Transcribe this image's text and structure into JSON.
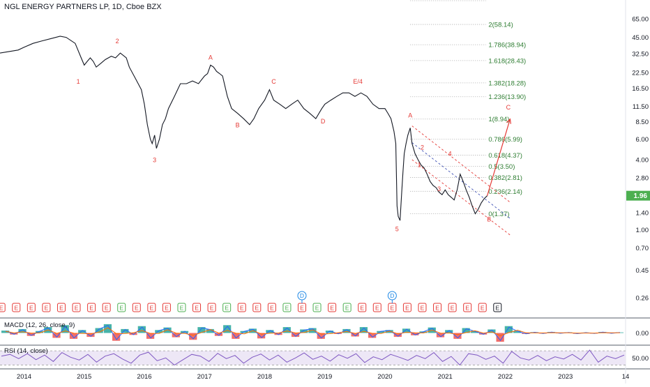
{
  "header": {
    "title": "NGL ENERGY PARTNERS LP, 1D, Cboe BZX"
  },
  "price_badge": {
    "value": "1.96",
    "color": "#4caf50"
  },
  "colors": {
    "price_line": "#131722",
    "wave_label": "#e53935",
    "fib_text": "#2e7d32",
    "fib_line": "#9e9e9e",
    "channel": "#e53935",
    "channel_mid": "#3f51b5",
    "projection": "#e53935",
    "macd_line": "#2962ff",
    "macd_signal": "#ff6d00",
    "macd_hist_pos": "#26a69a",
    "macd_hist_neg": "#ef5350",
    "rsi_line": "#7e57c2",
    "rsi_band": "#ede7f6",
    "earnings": "#e53935",
    "dividend": "#1e88e5",
    "split": "#4caf50"
  },
  "chart_data": {
    "type": "line",
    "scale": "log",
    "xlim": [
      2013.6,
      2024.0
    ],
    "ylim": [
      0.2,
      110
    ],
    "x_ticks": [
      "2014",
      "2015",
      "2016",
      "2017",
      "2018",
      "2019",
      "2020",
      "2021",
      "2022",
      "2023",
      "14"
    ],
    "x_tick_years": [
      2014,
      2015,
      2016,
      2017,
      2018,
      2019,
      2020,
      2021,
      2022,
      2023,
      2024
    ],
    "y_ticks": [
      "65.00",
      "45.00",
      "32.50",
      "22.50",
      "16.50",
      "11.50",
      "8.50",
      "6.00",
      "4.00",
      "2.80",
      "1.96",
      "1.40",
      "1.00",
      "0.70",
      "0.45",
      "0.26"
    ],
    "y_tick_values": [
      65,
      45,
      32.5,
      22.5,
      16.5,
      11.5,
      8.5,
      6,
      4,
      2.8,
      1.96,
      1.4,
      1.0,
      0.7,
      0.45,
      0.26
    ],
    "price_series": {
      "name": "",
      "x": [
        2013.6,
        2013.75,
        2013.9,
        2014.0,
        2014.15,
        2014.3,
        2014.45,
        2014.6,
        2014.7,
        2014.85,
        2014.95,
        2015.0,
        2015.05,
        2015.1,
        2015.15,
        2015.2,
        2015.28,
        2015.35,
        2015.45,
        2015.52,
        2015.6,
        2015.7,
        2015.75,
        2015.85,
        2015.95,
        2016.0,
        2016.05,
        2016.1,
        2016.13,
        2016.17,
        2016.2,
        2016.25,
        2016.3,
        2016.35,
        2016.4,
        2016.5,
        2016.6,
        2016.7,
        2016.8,
        2016.9,
        2017.0,
        2017.05,
        2017.1,
        2017.15,
        2017.2,
        2017.25,
        2017.3,
        2017.38,
        2017.45,
        2017.55,
        2017.65,
        2017.75,
        2017.82,
        2017.9,
        2018.0,
        2018.08,
        2018.15,
        2018.25,
        2018.35,
        2018.45,
        2018.55,
        2018.65,
        2018.75,
        2018.85,
        2018.95,
        2019.0,
        2019.1,
        2019.2,
        2019.3,
        2019.4,
        2019.5,
        2019.6,
        2019.7,
        2019.8,
        2019.9,
        2020.0,
        2020.05,
        2020.1,
        2020.15,
        2020.18,
        2020.2,
        2020.22,
        2020.25,
        2020.28,
        2020.3,
        2020.32,
        2020.35,
        2020.38,
        2020.42,
        2020.45,
        2020.5,
        2020.55,
        2020.6,
        2020.65,
        2020.7,
        2020.75,
        2020.8,
        2020.85,
        2020.9,
        2020.95,
        2021.0,
        2021.05,
        2021.1,
        2021.15,
        2021.2,
        2021.25,
        2021.3,
        2021.35,
        2021.4,
        2021.45,
        2021.5,
        2021.55,
        2021.6,
        2021.65,
        2021.7
      ],
      "y": [
        33,
        34,
        35,
        37,
        40,
        42,
        44,
        46,
        45,
        40,
        30,
        26,
        28,
        30,
        28,
        25,
        27,
        29,
        31,
        30,
        33,
        30,
        25,
        20,
        16,
        12,
        8,
        6,
        5.5,
        6.5,
        5,
        6,
        8,
        9,
        11,
        14,
        18,
        18,
        19,
        18,
        21,
        22,
        26,
        25,
        23,
        22,
        21,
        14,
        11,
        10,
        9,
        8,
        9,
        11,
        13,
        16,
        13,
        12,
        11,
        12,
        13,
        11,
        10,
        9,
        11,
        12,
        13,
        14,
        15,
        15,
        14,
        15,
        14,
        12,
        11,
        11,
        10,
        9,
        7,
        5.5,
        1.6,
        1.3,
        1.2,
        2.2,
        3.2,
        4.5,
        5.5,
        6.5,
        7.5,
        5.5,
        4.5,
        4.0,
        3.6,
        3.4,
        3.0,
        2.6,
        2.4,
        2.3,
        2.1,
        2.0,
        2.2,
        2.0,
        1.9,
        1.8,
        2.2,
        3.0,
        2.6,
        2.2,
        1.9,
        1.6,
        1.37,
        1.5,
        1.7,
        1.85,
        1.96
      ]
    },
    "fib_levels": [
      {
        "label": "2(58.14)",
        "value": 58.14
      },
      {
        "label": "1.786(38.94)",
        "value": 38.94
      },
      {
        "label": "1.618(28.43)",
        "value": 28.43
      },
      {
        "label": "1.382(18.28)",
        "value": 18.28
      },
      {
        "label": "1.236(13.90)",
        "value": 13.9
      },
      {
        "label": "1(8.94)",
        "value": 8.94
      },
      {
        "label": "0.786(5.99)",
        "value": 5.99
      },
      {
        "label": "0.618(4.37)",
        "value": 4.37
      },
      {
        "label": "0.5(3.50)",
        "value": 3.5
      },
      {
        "label": "0.382(2.81)",
        "value": 2.81
      },
      {
        "label": "0.236(2.14)",
        "value": 2.14
      },
      {
        "label": "0(1.37)",
        "value": 1.37
      }
    ],
    "wave_labels": [
      {
        "text": "1",
        "x": 2014.9,
        "y": 18
      },
      {
        "text": "2",
        "x": 2015.55,
        "y": 40
      },
      {
        "text": "3",
        "x": 2016.17,
        "y": 3.8
      },
      {
        "text": "A",
        "x": 2017.1,
        "y": 29
      },
      {
        "text": "B",
        "x": 2017.55,
        "y": 7.6
      },
      {
        "text": "C",
        "x": 2018.15,
        "y": 18
      },
      {
        "text": "D",
        "x": 2018.97,
        "y": 8.2
      },
      {
        "text": "E/4",
        "x": 2019.55,
        "y": 18
      },
      {
        "text": "5",
        "x": 2020.2,
        "y": 0.97
      },
      {
        "text": "A",
        "x": 2020.42,
        "y": 9.2
      },
      {
        "text": "1",
        "x": 2020.57,
        "y": 3.45
      },
      {
        "text": "2",
        "x": 2020.62,
        "y": 4.9
      },
      {
        "text": "3",
        "x": 2020.9,
        "y": 2.15
      },
      {
        "text": "4",
        "x": 2021.08,
        "y": 4.3
      },
      {
        "text": "B",
        "x": 2021.73,
        "y": 1.18
      },
      {
        "text": "C",
        "x": 2022.05,
        "y": 10.8
      }
    ],
    "projection": {
      "x": [
        2021.7,
        2022.08
      ],
      "y": [
        1.96,
        8.94
      ]
    },
    "channel": {
      "upper": {
        "x": [
          2020.45,
          2022.08
        ],
        "y": [
          7.8,
          1.72
        ]
      },
      "lower": {
        "x": [
          2020.45,
          2022.08
        ],
        "y": [
          4.0,
          0.9
        ]
      },
      "mid": {
        "x": [
          2020.45,
          2022.08
        ],
        "y": [
          5.6,
          1.25
        ]
      }
    },
    "event_markers": {
      "row_symbols": [
        "E",
        "E",
        "E",
        "E",
        "E",
        "E",
        "E",
        "E",
        "E",
        "E",
        "E",
        "E",
        "E",
        "E",
        "E",
        "E",
        "E",
        "E",
        "E",
        "E",
        "E",
        "E",
        "E",
        "E",
        "E",
        "E",
        "E",
        "E",
        "E",
        "E",
        "E",
        "E",
        "E",
        "E"
      ],
      "row_x": [
        2013.62,
        2013.87,
        2014.12,
        2014.37,
        2014.62,
        2014.87,
        2015.12,
        2015.37,
        2015.62,
        2015.87,
        2016.12,
        2016.37,
        2016.62,
        2016.87,
        2017.12,
        2017.37,
        2017.62,
        2017.87,
        2018.12,
        2018.37,
        2018.62,
        2018.87,
        2019.12,
        2019.37,
        2019.62,
        2019.87,
        2020.12,
        2020.37,
        2020.62,
        2020.87,
        2021.12,
        2021.37,
        2021.62,
        2021.87
      ],
      "row_kinds": [
        "earnings",
        "earnings",
        "earnings",
        "earnings",
        "earnings",
        "earnings",
        "earnings",
        "earnings",
        "split",
        "earnings",
        "earnings",
        "earnings",
        "split",
        "earnings",
        "earnings",
        "split",
        "earnings",
        "earnings",
        "earnings",
        "split",
        "earnings",
        "split",
        "earnings",
        "split",
        "earnings",
        "earnings",
        "earnings",
        "earnings",
        "earnings",
        "earnings",
        "earnings",
        "earnings",
        "earnings",
        "future"
      ],
      "dividend_symbol": "D",
      "dividend_x": [
        2018.62,
        2020.12
      ]
    },
    "macd": {
      "label": "MACD (12, 26, close, 9)",
      "y_tick": "0.00",
      "hist": [
        0.12,
        -0.08,
        0.2,
        -0.15,
        0.1,
        0.3,
        -0.25,
        0.4,
        -0.3,
        0.15,
        -0.2,
        0.25,
        0.45,
        -0.4,
        0.2,
        -0.1,
        0.35,
        -0.3,
        0.15,
        0.28,
        -0.22,
        0.1,
        -0.35,
        0.3,
        0.2,
        -0.15,
        0.4,
        -0.3,
        0.1,
        0.22,
        -0.28,
        0.15,
        -0.1,
        0.3,
        -0.2,
        0.18,
        0.25,
        -0.3,
        0.12,
        -0.05,
        0.2,
        -0.18,
        0.3,
        -0.25,
        0.1,
        0.15,
        -0.2,
        0.22,
        -0.12,
        0.08,
        0.28,
        -0.22,
        0.15,
        -0.3,
        0.25,
        0.1,
        -0.08,
        0.18,
        -0.45,
        0.35,
        0.1,
        -0.05,
        0.04,
        -0.03,
        0.05,
        -0.02,
        0.03,
        -0.04,
        0.02,
        -0.03,
        0.05,
        -0.02,
        0.03
      ]
    },
    "rsi": {
      "label": "RSI (14, close)",
      "y_tick": "50.00",
      "values": [
        55,
        60,
        48,
        62,
        45,
        58,
        40,
        65,
        52,
        44,
        60,
        38,
        55,
        62,
        47,
        35,
        58,
        66,
        42,
        50,
        30,
        45,
        60,
        55,
        40,
        63,
        48,
        57,
        35,
        52,
        61,
        44,
        58,
        38,
        50,
        64,
        46,
        55,
        41,
        59,
        49,
        62,
        37,
        53,
        45,
        60,
        52,
        43,
        57,
        48,
        65,
        40,
        54,
        30,
        62,
        58,
        46,
        55,
        35,
        68,
        50,
        44,
        57,
        42,
        53,
        47,
        60,
        44,
        72,
        38,
        55,
        48,
        58
      ]
    }
  }
}
